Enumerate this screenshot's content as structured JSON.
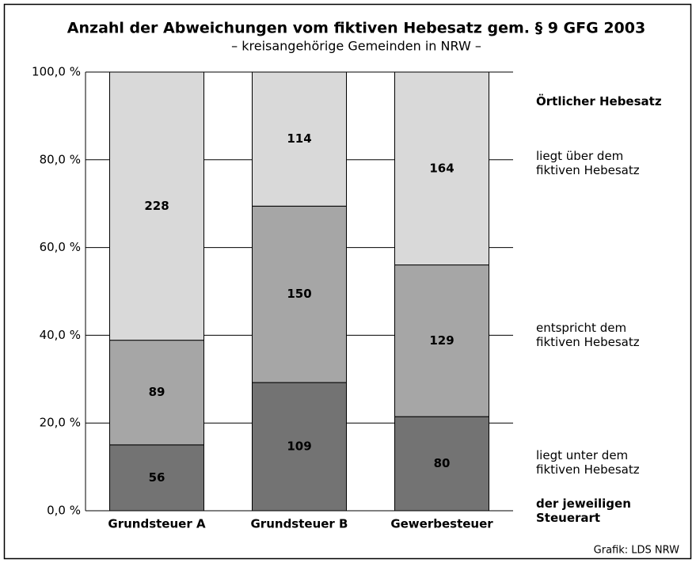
{
  "chart_data": {
    "type": "bar",
    "stack": "percent",
    "title": "Anzahl der Abweichungen vom fiktiven Hebesatz gem. § 9 GFG 2003",
    "subtitle": "– kreisangehörige Gemeinden in NRW –",
    "categories": [
      "Grundsteuer A",
      "Grundsteuer B",
      "Gewerbesteuer"
    ],
    "series": [
      {
        "name": "liegt unter dem fiktiven Hebesatz",
        "color": "#737373",
        "values": [
          56,
          109,
          80
        ]
      },
      {
        "name": "entspricht dem fiktiven Hebesatz",
        "color": "#a6a6a6",
        "values": [
          89,
          150,
          129
        ]
      },
      {
        "name": "liegt über dem fiktiven Hebesatz",
        "color": "#d9d9d9",
        "values": [
          228,
          114,
          164
        ]
      }
    ],
    "legend_title": "Örtlicher Hebesatz",
    "legend_footer": "der jeweiligen Steuerart",
    "ylim": [
      0,
      100
    ],
    "yticks": [
      {
        "value": 0,
        "label": "0,0 %"
      },
      {
        "value": 20,
        "label": "20,0 %"
      },
      {
        "value": 40,
        "label": "40,0 %"
      },
      {
        "value": 60,
        "label": "60,0 %"
      },
      {
        "value": 80,
        "label": "80,0 %"
      },
      {
        "value": 100,
        "label": "100,0 %"
      }
    ],
    "grid": true,
    "source": "Grafik: LDS NRW"
  }
}
